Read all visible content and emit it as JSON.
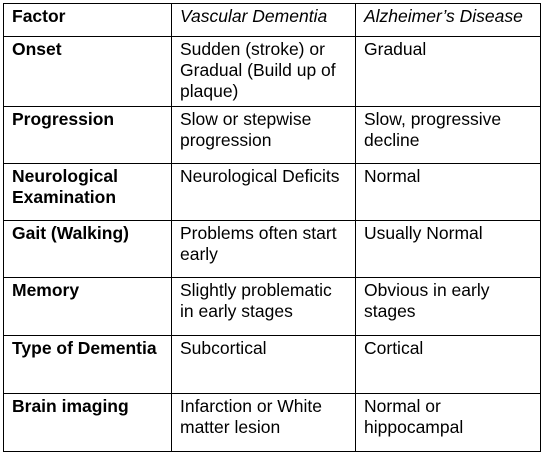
{
  "table": {
    "headers": [
      "Factor",
      "Vascular Dementia",
      "Alzheimer’s Disease"
    ],
    "rows": [
      {
        "factor": "Onset",
        "vascular": "Sudden (stroke) or Gradual (Build up of plaque)",
        "alzheimers": "Gradual"
      },
      {
        "factor": "Progression",
        "vascular": "Slow or stepwise progression",
        "alzheimers": "Slow, progressive decline"
      },
      {
        "factor": "Neurological Examination",
        "vascular": "Neurological Deficits",
        "alzheimers": "Normal"
      },
      {
        "factor": "Gait (Walking)",
        "vascular": "Problems often start early",
        "alzheimers": "Usually Normal"
      },
      {
        "factor": "Memory",
        "vascular": "Slightly problematic in early stages",
        "alzheimers": "Obvious in early stages"
      },
      {
        "factor": "Type of Dementia",
        "vascular": "Subcortical",
        "alzheimers": "Cortical"
      },
      {
        "factor": "Brain imaging",
        "vascular": "Infarction or White matter lesion",
        "alzheimers": "Normal or hippocampal"
      }
    ]
  }
}
